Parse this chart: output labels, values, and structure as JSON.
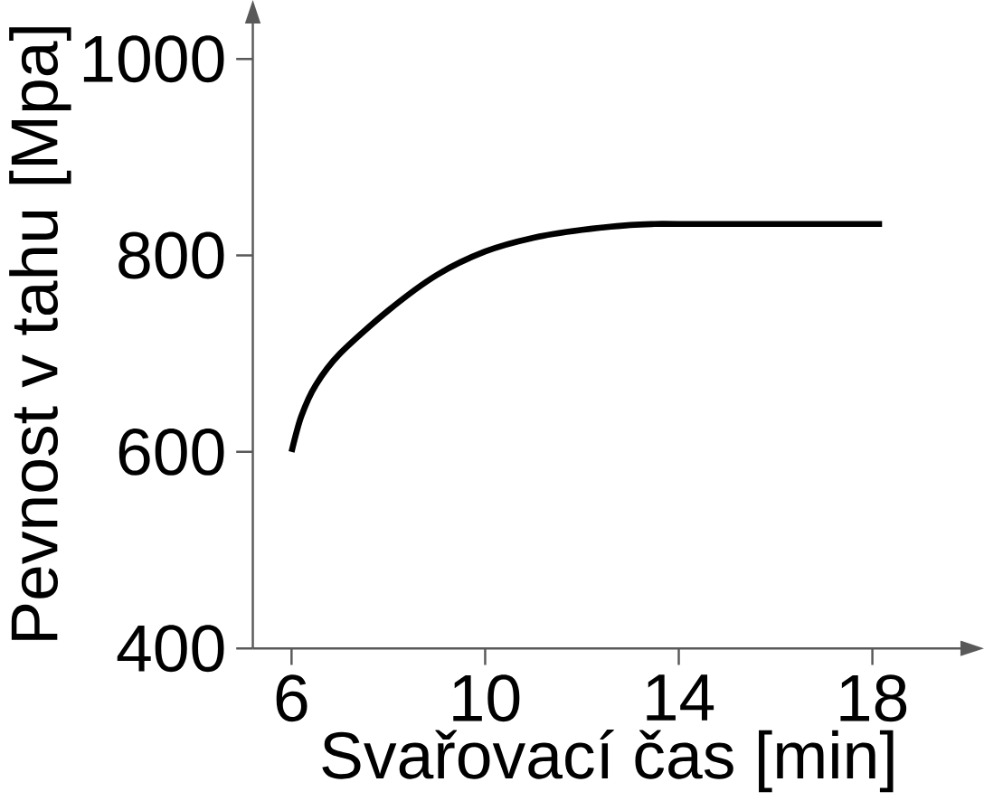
{
  "chart_data": {
    "type": "line",
    "xlabel": "Svařovací čas [min]",
    "ylabel": "Pevnost v tahu [Mpa]",
    "xlim": [
      5.2,
      19.9
    ],
    "ylim": [
      400,
      1040
    ],
    "xticks": [
      6,
      10,
      14,
      18
    ],
    "yticks": [
      400,
      600,
      800,
      1000
    ],
    "grid": false,
    "marker": "none",
    "line_style": "solid",
    "series": [
      {
        "color": "#000000",
        "x": [
          6,
          6.2,
          6.5,
          7,
          8,
          9,
          10,
          11,
          12,
          13,
          13.5,
          14,
          16,
          18.2
        ],
        "values": [
          600,
          636,
          668,
          700,
          744,
          780,
          804,
          818,
          826,
          831,
          832,
          832,
          832,
          832
        ]
      }
    ]
  }
}
